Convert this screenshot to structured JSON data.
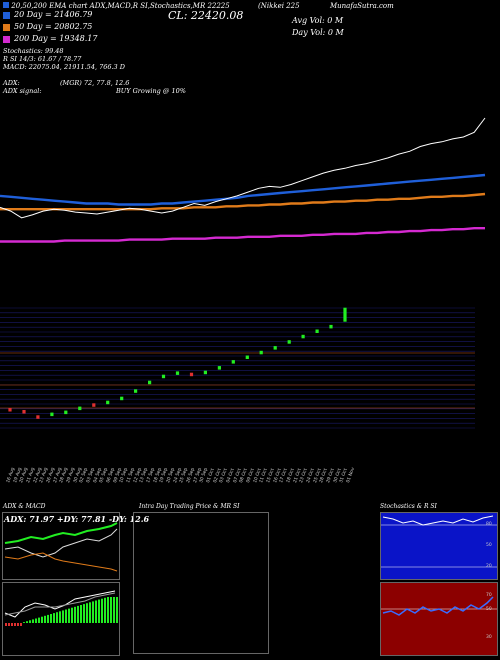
{
  "header": {
    "line1": "EMA chart ADX,MACD,R SI,Stochastics,MR 22225",
    "line1_prefix": "20,50,200",
    "ticker": "(Nikkei 225",
    "brand": "MunafaSutra.com",
    "cl_label": "CL: 22420.08",
    "avg_vol": "Avg Vol: 0  M",
    "day_vol": "Day Vol: 0  M"
  },
  "legend": [
    {
      "label": "20  Day = 21406.79",
      "color": "#1f5fd9"
    },
    {
      "label": "50  Day = 20802.75",
      "color": "#e07b1a"
    },
    {
      "label": "200  Day = 19348.17",
      "color": "#d52ad1"
    }
  ],
  "indicators": {
    "stochastics": "Stochastics: 99.48",
    "rsi": "R                       SI 14/3: 61.67 / 78.77",
    "macd": "MACD: 22075.04,  21911.54,  766.3 D",
    "adx_label": "ADX:",
    "adx_val": "(MGR) 72,  77.8,  12.6",
    "signal_label": "ADX  signal:",
    "signal_val": "BUY Growing @ 10%"
  },
  "x_labels": [
    "16 Aug",
    "19 Aug",
    "20 Aug",
    "21 Aug",
    "22 Aug",
    "23 Aug",
    "26 Aug",
    "27 Aug",
    "28 Aug",
    "29 Aug",
    "30 Aug",
    "02 Sep",
    "03 Sep",
    "04 Sep",
    "05 Sep",
    "06 Sep",
    "09 Sep",
    "10 Sep",
    "11 Sep",
    "12 Sep",
    "13 Sep",
    "17 Sep",
    "18 Sep",
    "19 Sep",
    "20 Sep",
    "24 Sep",
    "25 Sep",
    "26 Sep",
    "27 Sep",
    "30 Sep",
    "01 Oct",
    "02 Oct",
    "03 Oct",
    "04 Oct",
    "07 Oct",
    "08 Oct",
    "09 Oct",
    "10 Oct",
    "11 Oct",
    "15 Oct",
    "16 Oct",
    "17 Oct",
    "18 Oct",
    "21 Oct",
    "23 Oct",
    "24 Oct",
    "25 Oct",
    "28 Oct",
    "29 Oct",
    "30 Oct",
    "31 Oct",
    "01 Nov"
  ],
  "panels": {
    "adx_title": "ADX  & MACD",
    "adx_values": "ADX: 71.97 +DY: 77.81 -DY: 12.6",
    "intra_title": "Intra  Day Trading Price  & MR                    SI",
    "stoch_title": "Stochastics & R                    SI",
    "stoch_ticks": [
      "80",
      "50",
      "20"
    ],
    "rsi_ticks": [
      "70",
      "50",
      "30"
    ]
  },
  "colors": {
    "ema20": "#1f5fd9",
    "ema50": "#e07b1a",
    "ema200": "#d52ad1",
    "up": "#22ee22",
    "down": "#e03030",
    "stoch_bg": "#0a14c8",
    "rsi_bg": "#8c0000"
  },
  "chart_data": [
    {
      "type": "line",
      "title": "",
      "series": [
        {
          "name": "20  Day",
          "values": [
            0.78,
            0.77,
            0.76,
            0.75,
            0.74,
            0.73,
            0.72,
            0.71,
            0.7,
            0.7,
            0.7,
            0.69,
            0.69,
            0.69,
            0.69,
            0.7,
            0.7,
            0.71,
            0.72,
            0.73,
            0.74,
            0.75,
            0.76,
            0.78,
            0.79,
            0.8,
            0.81,
            0.82,
            0.83,
            0.84,
            0.85,
            0.86,
            0.87,
            0.88,
            0.89,
            0.9,
            0.91,
            0.92,
            0.93,
            0.94,
            0.95,
            0.96,
            0.97,
            0.98,
            0.99,
            1.0
          ]
        },
        {
          "name": "50  Day",
          "values": [
            0.64,
            0.64,
            0.64,
            0.64,
            0.64,
            0.64,
            0.64,
            0.64,
            0.64,
            0.64,
            0.64,
            0.64,
            0.64,
            0.64,
            0.64,
            0.65,
            0.65,
            0.65,
            0.66,
            0.66,
            0.66,
            0.67,
            0.67,
            0.68,
            0.68,
            0.69,
            0.69,
            0.7,
            0.7,
            0.71,
            0.71,
            0.72,
            0.72,
            0.73,
            0.73,
            0.74,
            0.74,
            0.75,
            0.75,
            0.76,
            0.77,
            0.77,
            0.78,
            0.78,
            0.79,
            0.8
          ]
        },
        {
          "name": "200  Day",
          "values": [
            0.3,
            0.3,
            0.3,
            0.3,
            0.3,
            0.3,
            0.31,
            0.31,
            0.31,
            0.31,
            0.31,
            0.31,
            0.32,
            0.32,
            0.32,
            0.32,
            0.33,
            0.33,
            0.33,
            0.33,
            0.34,
            0.34,
            0.34,
            0.35,
            0.35,
            0.35,
            0.36,
            0.36,
            0.36,
            0.37,
            0.37,
            0.38,
            0.38,
            0.38,
            0.39,
            0.39,
            0.4,
            0.4,
            0.41,
            0.41,
            0.42,
            0.42,
            0.43,
            0.43,
            0.44,
            0.44
          ]
        },
        {
          "name": "price",
          "values": [
            0.66,
            0.62,
            0.55,
            0.58,
            0.62,
            0.64,
            0.63,
            0.61,
            0.6,
            0.59,
            0.61,
            0.63,
            0.65,
            0.64,
            0.62,
            0.6,
            0.62,
            0.66,
            0.7,
            0.68,
            0.72,
            0.75,
            0.78,
            0.82,
            0.86,
            0.88,
            0.87,
            0.9,
            0.94,
            0.98,
            1.02,
            1.05,
            1.07,
            1.1,
            1.12,
            1.15,
            1.18,
            1.22,
            1.25,
            1.3,
            1.33,
            1.35,
            1.38,
            1.4,
            1.45,
            1.6
          ]
        }
      ]
    },
    {
      "type": "bar",
      "title": "",
      "series": [
        {
          "name": "close",
          "values": [
            22.3,
            22.0,
            21.2,
            21.6,
            21.9,
            22.5,
            23.0,
            23.4,
            24.0,
            25.1,
            26.4,
            27.3,
            27.8,
            27.6,
            27.9,
            28.6,
            29.5,
            30.2,
            30.9,
            31.6,
            32.5,
            33.3,
            34.1,
            34.8,
            36.6
          ]
        },
        {
          "name": "direction",
          "values": [
            -1,
            -1,
            -1,
            1,
            1,
            1,
            -1,
            1,
            1,
            1,
            1,
            1,
            1,
            -1,
            1,
            1,
            1,
            1,
            1,
            1,
            1,
            1,
            1,
            1,
            1
          ]
        }
      ]
    }
  ]
}
